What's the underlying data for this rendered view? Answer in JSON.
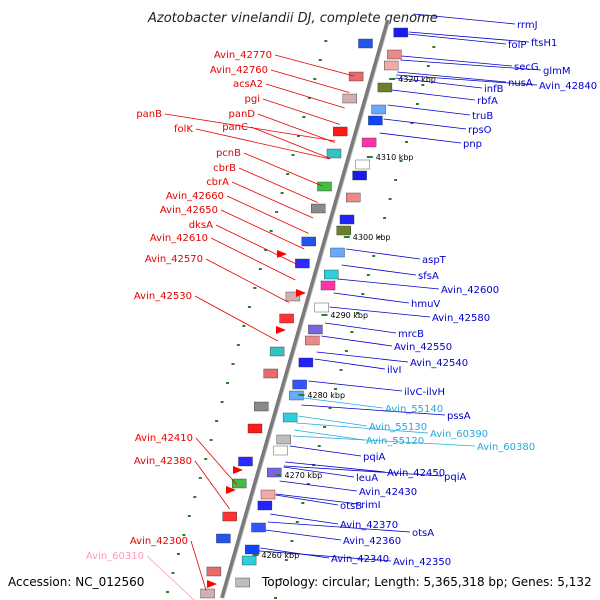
{
  "title": "Azotobacter vinelandii DJ, complete genome",
  "accession": "Accession: NC_012560",
  "topology": "Topology: circular; Length: 5,365,318 bp; Genes: 5,132",
  "colors": {
    "reverse_label": "#e60000",
    "forward_label": "#0000cc",
    "rna_label": "#22aadd",
    "pseudo_label": "#ff99bb",
    "backbone": "#888888",
    "tick": "#2a7d2a"
  },
  "kbp_marks": [
    "4320 kbp",
    "4310 kbp",
    "4300 kbp",
    "4290 kbp",
    "4280 kbp",
    "4270 kbp",
    "4260 kbp"
  ],
  "left_labels": [
    {
      "text": "Avin_42770",
      "kind": "reverse"
    },
    {
      "text": "Avin_42760",
      "kind": "reverse"
    },
    {
      "text": "acsA2",
      "kind": "reverse"
    },
    {
      "text": "pgi",
      "kind": "reverse"
    },
    {
      "text": "panB",
      "kind": "reverse"
    },
    {
      "text": "panD",
      "kind": "reverse"
    },
    {
      "text": "folK",
      "kind": "reverse"
    },
    {
      "text": "panC",
      "kind": "reverse"
    },
    {
      "text": "pcnB",
      "kind": "reverse"
    },
    {
      "text": "cbrB",
      "kind": "reverse"
    },
    {
      "text": "cbrA",
      "kind": "reverse"
    },
    {
      "text": "Avin_42660",
      "kind": "reverse"
    },
    {
      "text": "Avin_42650",
      "kind": "reverse"
    },
    {
      "text": "dksA",
      "kind": "reverse"
    },
    {
      "text": "Avin_42610",
      "kind": "reverse"
    },
    {
      "text": "Avin_42570",
      "kind": "reverse"
    },
    {
      "text": "Avin_42530",
      "kind": "reverse"
    },
    {
      "text": "Avin_42410",
      "kind": "reverse"
    },
    {
      "text": "Avin_42380",
      "kind": "reverse"
    },
    {
      "text": "Avin_42300",
      "kind": "reverse"
    },
    {
      "text": "Avin_60310",
      "kind": "pseudo"
    }
  ],
  "right_labels": [
    {
      "text": "rrmJ",
      "kind": "forward"
    },
    {
      "text": "ftsH1",
      "kind": "forward"
    },
    {
      "text": "folP",
      "kind": "forward"
    },
    {
      "text": "secG",
      "kind": "forward"
    },
    {
      "text": "glmM",
      "kind": "forward"
    },
    {
      "text": "nusA",
      "kind": "forward"
    },
    {
      "text": "Avin_42840",
      "kind": "forward"
    },
    {
      "text": "infB",
      "kind": "forward"
    },
    {
      "text": "rbfA",
      "kind": "forward"
    },
    {
      "text": "truB",
      "kind": "forward"
    },
    {
      "text": "rpsO",
      "kind": "forward"
    },
    {
      "text": "pnp",
      "kind": "forward"
    },
    {
      "text": "aspT",
      "kind": "forward"
    },
    {
      "text": "sfsA",
      "kind": "forward"
    },
    {
      "text": "Avin_42600",
      "kind": "forward"
    },
    {
      "text": "hmuV",
      "kind": "forward"
    },
    {
      "text": "Avin_42580",
      "kind": "forward"
    },
    {
      "text": "mrcB",
      "kind": "forward"
    },
    {
      "text": "Avin_42550",
      "kind": "forward"
    },
    {
      "text": "Avin_42540",
      "kind": "forward"
    },
    {
      "text": "ilvI",
      "kind": "forward"
    },
    {
      "text": "ilvC-ilvH",
      "kind": "forward"
    },
    {
      "text": "Avin_55140",
      "kind": "rna"
    },
    {
      "text": "pssA",
      "kind": "forward"
    },
    {
      "text": "Avin_55130",
      "kind": "rna"
    },
    {
      "text": "Avin_60390",
      "kind": "rna"
    },
    {
      "text": "Avin_55120",
      "kind": "rna"
    },
    {
      "text": "Avin_60380",
      "kind": "rna"
    },
    {
      "text": "pqiA",
      "kind": "forward"
    },
    {
      "text": "Avin_42450",
      "kind": "forward"
    },
    {
      "text": "pqiA",
      "kind": "forward"
    },
    {
      "text": "leuA",
      "kind": "forward"
    },
    {
      "text": "Avin_42430",
      "kind": "forward"
    },
    {
      "text": "otsB",
      "kind": "forward"
    },
    {
      "text": "rimI",
      "kind": "forward"
    },
    {
      "text": "Avin_42370",
      "kind": "forward"
    },
    {
      "text": "otsA",
      "kind": "forward"
    },
    {
      "text": "Avin_42360",
      "kind": "forward"
    },
    {
      "text": "Avin_42340",
      "kind": "forward"
    },
    {
      "text": "Avin_42350",
      "kind": "forward"
    }
  ]
}
